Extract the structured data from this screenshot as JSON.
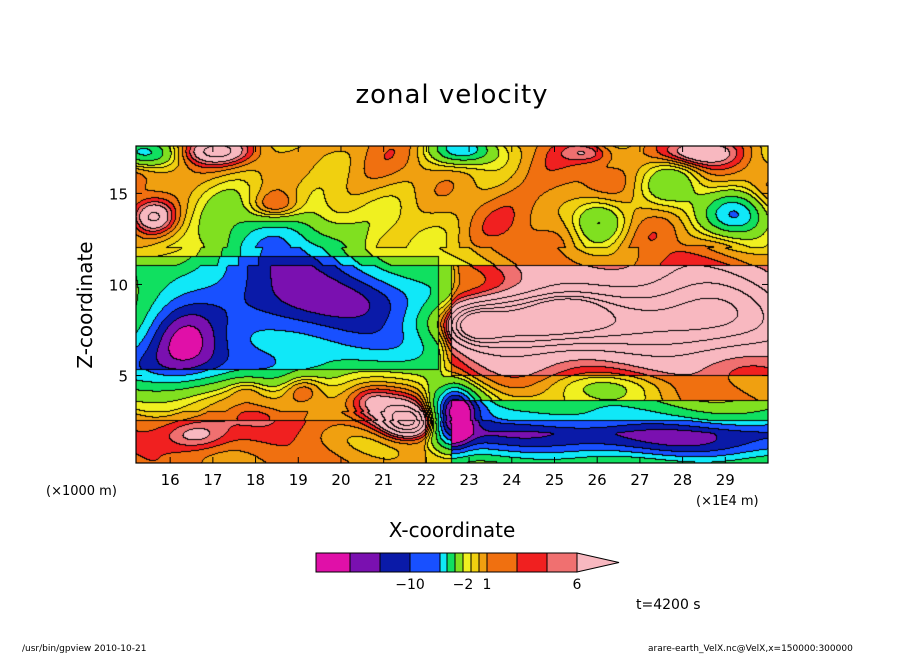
{
  "chart_data": {
    "type": "heatmap",
    "title": "zonal velocity",
    "xlabel": "X-coordinate",
    "ylabel": "Z-coordinate",
    "x_unit_left": "(×1000 m)",
    "x_unit_right": "(×1E4 m)",
    "time_label": "t=4200 s",
    "xlim": [
      15.2,
      30.0
    ],
    "ylim": [
      0.2,
      17.6
    ],
    "x_ticks": [
      16,
      17,
      18,
      19,
      20,
      21,
      22,
      23,
      24,
      25,
      26,
      27,
      28,
      29
    ],
    "y_ticks": [
      5,
      10,
      15
    ],
    "colorbar": {
      "levels": [
        -14,
        -12,
        -10,
        -8,
        -6,
        -4,
        -2,
        -1,
        0,
        1,
        2,
        3,
        4,
        6,
        8,
        10,
        12
      ],
      "tick_labels": [
        {
          "level": -10,
          "label": "−10"
        },
        {
          "level": -2,
          "label": "−2"
        },
        {
          "level": 1,
          "label": "1"
        },
        {
          "level": 6,
          "label": "6"
        }
      ],
      "colors": [
        "#e010a8",
        "#7a10b0",
        "#0a1aa8",
        "#1850ff",
        "#10e8f8",
        "#10e060",
        "#80e020",
        "#f0f020",
        "#f0d010",
        "#f0a010",
        "#f07010",
        "#f02020",
        "#f07070",
        "#f8b8c0"
      ]
    },
    "features": [
      {
        "x": 16.3,
        "z": 7.0,
        "value": -13.0,
        "width": 1.2,
        "height": 2.3
      },
      {
        "x": 20.4,
        "z": 8.8,
        "value": -11.0,
        "width": 4.0,
        "height": 2.3
      },
      {
        "x": 18.6,
        "z": 11.6,
        "value": -9.5,
        "width": 2.5,
        "height": 4.0
      },
      {
        "x": 16.2,
        "z": 5.4,
        "value": -7.0,
        "width": 5.2,
        "height": 1.8
      },
      {
        "x": 21.0,
        "z": 6.8,
        "value": -6.0,
        "width": 2.4,
        "height": 1.6
      },
      {
        "x": 24.8,
        "z": 1.6,
        "value": -12.0,
        "width": 5.2,
        "height": 1.3
      },
      {
        "x": 28.6,
        "z": 1.2,
        "value": -11.0,
        "width": 3.2,
        "height": 1.2
      },
      {
        "x": 22.6,
        "z": 2.7,
        "value": -14.0,
        "width": 0.55,
        "height": 2.0
      },
      {
        "x": 22.9,
        "z": 3.4,
        "value": -10.0,
        "width": 0.8,
        "height": 1.4
      },
      {
        "x": 25.3,
        "z": 3.4,
        "value": -6.0,
        "width": 2.8,
        "height": 1.0
      },
      {
        "x": 26.0,
        "z": 4.4,
        "value": -3.0,
        "width": 2.0,
        "height": 0.9
      },
      {
        "x": 29.3,
        "z": 13.8,
        "value": -9.0,
        "width": 0.9,
        "height": 1.5
      },
      {
        "x": 27.8,
        "z": 15.3,
        "value": -4.0,
        "width": 0.9,
        "height": 1.7
      },
      {
        "x": 15.4,
        "z": 17.2,
        "value": -8.0,
        "width": 0.9,
        "height": 1.0
      },
      {
        "x": 22.9,
        "z": 17.4,
        "value": -8.0,
        "width": 0.9,
        "height": 1.0
      },
      {
        "x": 26.0,
        "z": 13.6,
        "value": -5.0,
        "width": 0.8,
        "height": 1.6
      },
      {
        "x": 24.2,
        "z": 8.0,
        "value": 10.5,
        "width": 2.4,
        "height": 1.6
      },
      {
        "x": 25.3,
        "z": 8.5,
        "value": 11.5,
        "width": 0.8,
        "height": 0.8
      },
      {
        "x": 23.2,
        "z": 7.7,
        "value": 11.0,
        "width": 0.6,
        "height": 1.0
      },
      {
        "x": 24.5,
        "z": 7.8,
        "value": 7.5,
        "width": 3.2,
        "height": 2.1
      },
      {
        "x": 28.5,
        "z": 8.0,
        "value": 8.0,
        "width": 2.0,
        "height": 2.6
      },
      {
        "x": 27.6,
        "z": 8.7,
        "value": 4.5,
        "width": 3.4,
        "height": 3.2
      },
      {
        "x": 25.3,
        "z": 10.4,
        "value": 3.0,
        "width": 2.8,
        "height": 1.8
      },
      {
        "x": 21.6,
        "z": 2.3,
        "value": 9.0,
        "width": 0.7,
        "height": 1.0
      },
      {
        "x": 21.4,
        "z": 3.0,
        "value": 6.0,
        "width": 1.0,
        "height": 1.4
      },
      {
        "x": 20.7,
        "z": 3.6,
        "value": 3.5,
        "width": 0.6,
        "height": 1.0
      },
      {
        "x": 19.1,
        "z": 4.3,
        "value": 3.5,
        "width": 0.6,
        "height": 1.0
      },
      {
        "x": 17.8,
        "z": 4.3,
        "value": 3.0,
        "width": 0.6,
        "height": 0.8
      },
      {
        "x": 16.6,
        "z": 1.7,
        "value": 4.0,
        "width": 0.9,
        "height": 1.0
      },
      {
        "x": 15.6,
        "z": 13.7,
        "value": 7.5,
        "width": 0.6,
        "height": 1.1
      },
      {
        "x": 18.5,
        "z": 14.2,
        "value": 6.0,
        "width": 0.8,
        "height": 1.1
      },
      {
        "x": 17.0,
        "z": 17.3,
        "value": 7.5,
        "width": 1.0,
        "height": 0.9
      },
      {
        "x": 28.3,
        "z": 17.2,
        "value": 6.5,
        "width": 1.1,
        "height": 0.9
      },
      {
        "x": 25.8,
        "z": 17.2,
        "value": 4.0,
        "width": 0.7,
        "height": 0.7
      },
      {
        "x": 20.5,
        "z": 16.0,
        "value": 1.5,
        "width": 1.6,
        "height": 2.4
      },
      {
        "x": 15.9,
        "z": 16.4,
        "value": 1.0,
        "width": 1.4,
        "height": 1.4
      },
      {
        "x": 17.2,
        "z": 12.9,
        "value": 1.0,
        "width": 1.6,
        "height": 3.0
      },
      {
        "x": 19.6,
        "z": 13.0,
        "value": 2.0,
        "width": 2.0,
        "height": 2.8
      },
      {
        "x": 24.6,
        "z": 14.2,
        "value": 1.0,
        "width": 2.0,
        "height": 3.0
      },
      {
        "x": 22.4,
        "z": 15.4,
        "value": 0.8,
        "width": 1.6,
        "height": 4.0
      },
      {
        "x": 19.6,
        "z": 3.2,
        "value": 1.5,
        "width": 3.4,
        "height": 2.0
      },
      {
        "x": 16.9,
        "z": 2.2,
        "value": 1.5,
        "width": 2.2,
        "height": 1.8
      },
      {
        "x": 28.2,
        "z": 5.6,
        "value": 1.5,
        "width": 3.4,
        "height": 2.2
      }
    ]
  }
}
